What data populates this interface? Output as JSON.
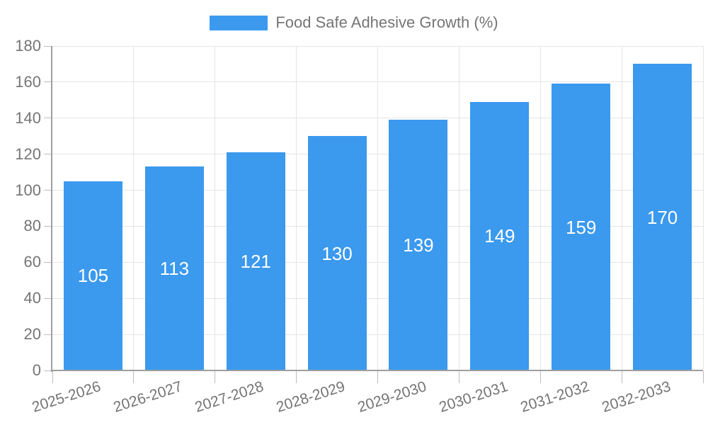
{
  "legend": {
    "label": "Food Safe Adhesive Growth (%)"
  },
  "chart_data": {
    "type": "bar",
    "title": "Food Safe Adhesive Growth (%)",
    "categories": [
      "2025-2026",
      "2026-2027",
      "2027-2028",
      "2028-2029",
      "2029-2030",
      "2030-2031",
      "2031-2032",
      "2032-2033"
    ],
    "values": [
      105,
      113,
      121,
      130,
      139,
      149,
      159,
      170
    ],
    "xlabel": "",
    "ylabel": "",
    "ylim": [
      0,
      180
    ],
    "yticks": [
      0,
      20,
      40,
      60,
      80,
      100,
      120,
      140,
      160,
      180
    ],
    "grid": true,
    "legend_position": "top",
    "value_labels": "inside-center"
  },
  "colors": {
    "bar": "#3b99ee",
    "value_label": "#ffffff",
    "axis_text": "#757575",
    "grid_line": "#e5e5e5",
    "axis_line": "#9e9e9e",
    "tick_mark": "#bdbdbd",
    "background": "#ffffff"
  }
}
